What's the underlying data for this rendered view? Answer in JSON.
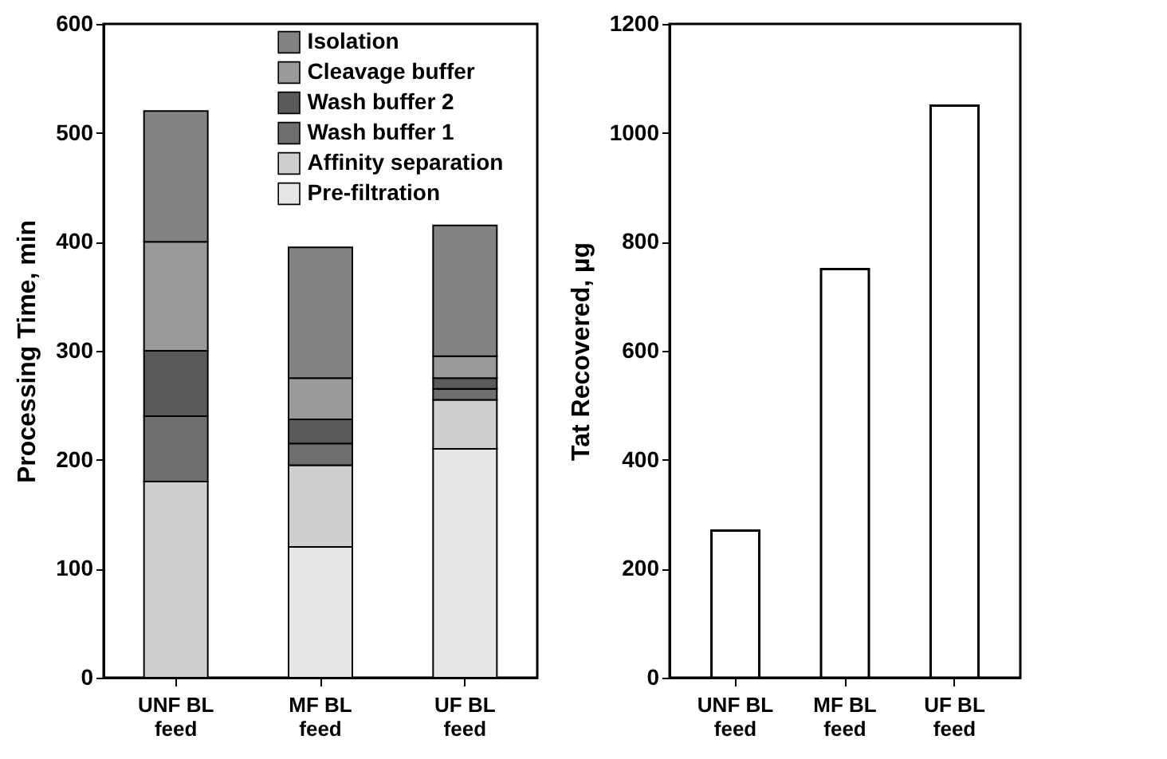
{
  "chart_data": [
    {
      "type": "bar",
      "stacked": true,
      "ylabel": "Processing Time, min",
      "categories": [
        "UNF BL feed",
        "MF BL feed",
        "UF BL feed"
      ],
      "series": [
        {
          "name": "Pre-filtration",
          "color": "#e6e6e6",
          "values": [
            0,
            120,
            210
          ]
        },
        {
          "name": "Affinity separation",
          "color": "#cfcfcf",
          "values": [
            180,
            75,
            45
          ]
        },
        {
          "name": "Wash buffer 1",
          "color": "#6f6f6f",
          "values": [
            60,
            20,
            10
          ]
        },
        {
          "name": "Wash buffer 2",
          "color": "#5a5a5a",
          "values": [
            60,
            22,
            10
          ]
        },
        {
          "name": "Cleavage buffer",
          "color": "#9a9a9a",
          "values": [
            100,
            38,
            20
          ]
        },
        {
          "name": "Isolation",
          "color": "#838383",
          "values": [
            120,
            120,
            120
          ]
        }
      ],
      "ylim": [
        0,
        600
      ],
      "yticks": [
        0,
        100,
        200,
        300,
        400,
        500,
        600
      ],
      "legend": "top",
      "grid": false
    },
    {
      "type": "bar",
      "ylabel": "Tat Recovered, µg",
      "categories": [
        "UNF BL feed",
        "MF BL feed",
        "UF BL feed"
      ],
      "values": [
        270,
        750,
        1050
      ],
      "color": "#ffffff",
      "ylim": [
        0,
        1200
      ],
      "yticks": [
        0,
        200,
        400,
        600,
        800,
        1000,
        1200
      ],
      "grid": false
    }
  ]
}
